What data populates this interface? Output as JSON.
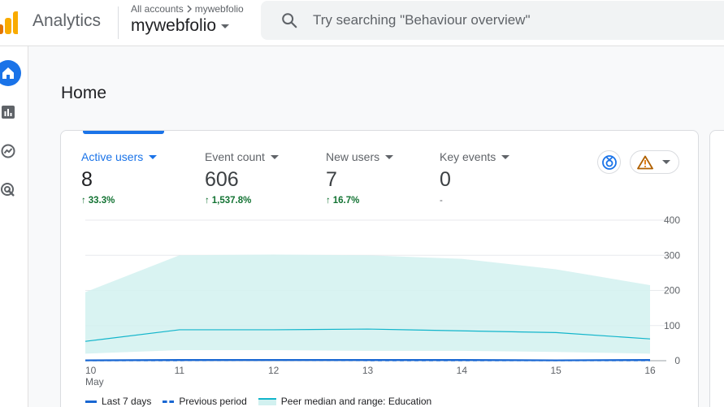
{
  "header": {
    "app_name": "Analytics",
    "breadcrumb": {
      "accounts": "All accounts",
      "account": "mywebfolio"
    },
    "property": "mywebfolio",
    "search": {
      "placeholder": "Try searching \"Behaviour overview\""
    }
  },
  "sidenav": {
    "items": [
      {
        "name": "home",
        "icon": "home-icon",
        "active": true
      },
      {
        "name": "reports",
        "icon": "bar-chart-icon",
        "active": false
      },
      {
        "name": "explore",
        "icon": "explore-icon",
        "active": false
      },
      {
        "name": "advertising",
        "icon": "target-icon",
        "active": false
      }
    ]
  },
  "page": {
    "title": "Home"
  },
  "metrics": [
    {
      "label": "Active users",
      "value": "8",
      "change": "33.3%",
      "trend": "up",
      "active": true
    },
    {
      "label": "Event count",
      "value": "606",
      "change": "1,537.8%",
      "trend": "up",
      "active": false
    },
    {
      "label": "New users",
      "value": "7",
      "change": "16.7%",
      "trend": "up",
      "active": false
    },
    {
      "label": "Key events",
      "value": "0",
      "change": "-",
      "trend": "none",
      "active": false
    }
  ],
  "colors": {
    "accent": "#1a73e8",
    "positive": "#137333",
    "band_fill": "#d2f1f0",
    "band_line": "#12b5cb",
    "line": "#1967d2"
  },
  "chart_data": {
    "type": "line",
    "x": [
      "10",
      "11",
      "12",
      "13",
      "14",
      "15",
      "16"
    ],
    "x_sublabel_first": "May",
    "ylim": [
      0,
      400
    ],
    "yticks": [
      "0",
      "100",
      "200",
      "300",
      "400"
    ],
    "series": [
      {
        "name": "Last 7 days",
        "style": "solid",
        "values": [
          1,
          2,
          2,
          2,
          2,
          1,
          2
        ]
      },
      {
        "name": "Previous period",
        "style": "dashed",
        "values": [
          1,
          1,
          2,
          1,
          1,
          1,
          1
        ]
      },
      {
        "name": "Peer median and range: Education",
        "style": "band",
        "median": [
          55,
          88,
          88,
          90,
          85,
          80,
          62
        ],
        "lower": [
          20,
          30,
          30,
          28,
          28,
          25,
          20
        ],
        "upper": [
          195,
          300,
          302,
          300,
          290,
          260,
          215
        ]
      }
    ],
    "grid": true,
    "legend_position": "bottom-left"
  }
}
